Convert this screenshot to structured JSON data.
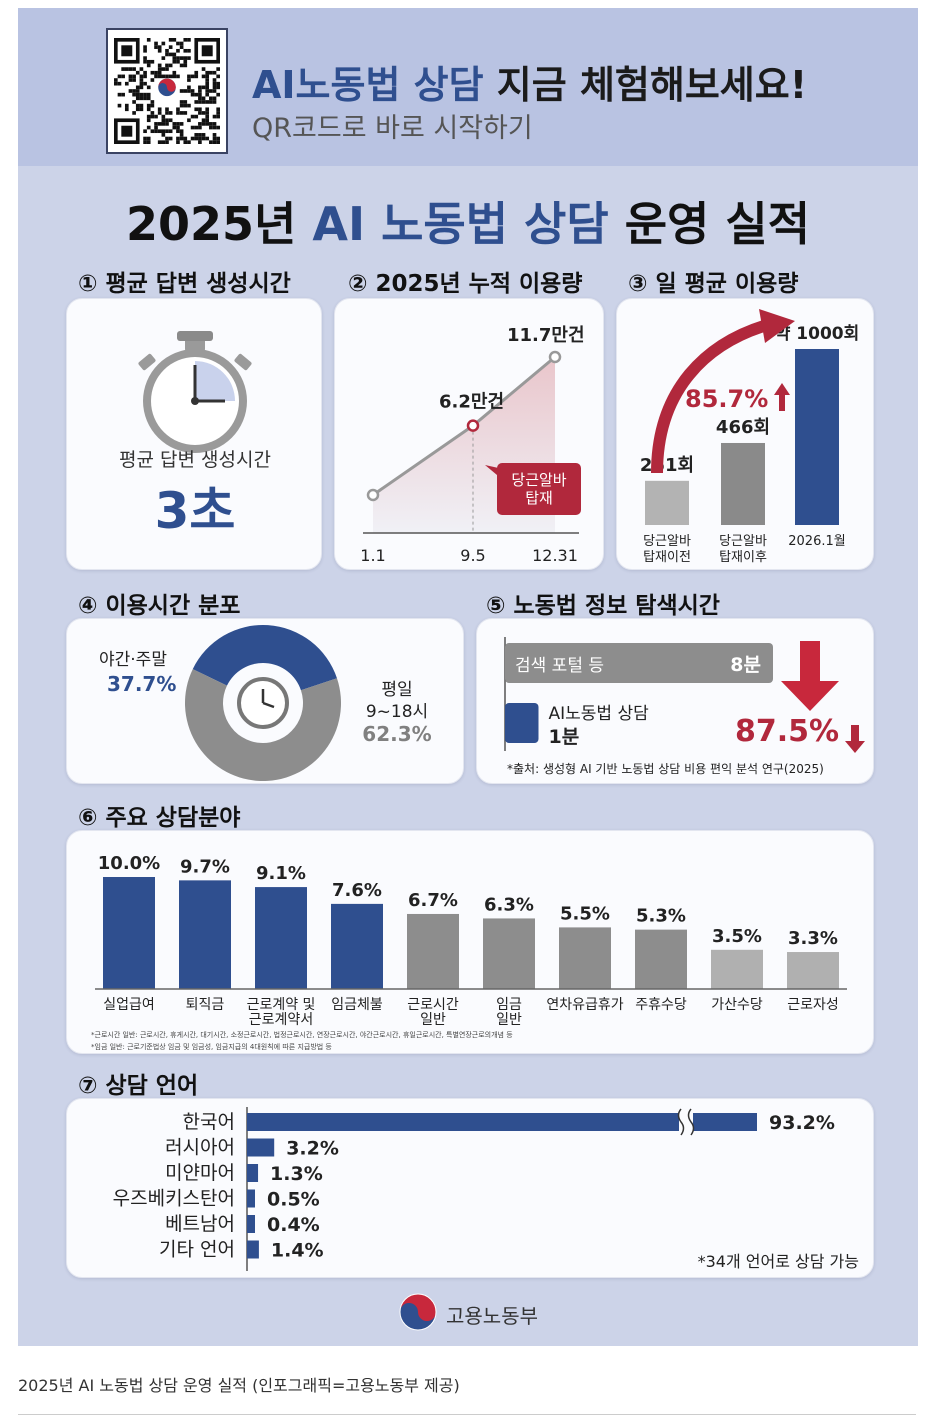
{
  "header": {
    "cta_title_accent": "AI노동법 상담",
    "cta_title_rest": " 지금 체험해보세요!",
    "cta_sub": "QR코드로 바로 시작하기"
  },
  "title": {
    "prefix": "2025년 ",
    "accent": "AI 노동법 상담",
    "suffix": " 운영 실적"
  },
  "sections": {
    "s1": "① 평균 답변 생성시간",
    "s2": "② 2025년 누적 이용량",
    "s3": "③ 일 평균 이용량",
    "s4": "④ 이용시간 분포",
    "s5": "⑤ 노동법 정보 탐색시간",
    "s6": "⑥ 주요 상담분야",
    "s7": "⑦ 상담 언어"
  },
  "avg_time": {
    "label": "평균 답변 생성시간",
    "value": "3초"
  },
  "colors": {
    "navy": "#2f4f8f",
    "grey": "#8a8a8a",
    "light_grey": "#b3b3b3",
    "red": "#b1283c"
  },
  "chart_data": [
    {
      "type": "line",
      "x": [
        "1.1",
        "9.5",
        "12.31"
      ],
      "values": [
        0,
        6.2,
        11.7
      ],
      "point_labels": [
        "",
        "6.2만건",
        "11.7만건"
      ],
      "annotation": "당근알바\n탑재"
    },
    {
      "type": "bar",
      "categories": [
        "당근알바\n탑재이전",
        "당근알바\n탑재이후",
        "2026.1월"
      ],
      "values": [
        251,
        466,
        1000
      ],
      "value_labels": [
        "251회",
        "466회",
        "약 1000회"
      ],
      "growth_label": "85.7%"
    },
    {
      "type": "pie",
      "labels": [
        "야간·주말",
        "평일\n9~18시"
      ],
      "values": [
        37.7,
        62.3
      ],
      "value_labels": [
        "37.7%",
        "62.3%"
      ]
    },
    {
      "type": "bar",
      "categories": [
        "검색 포털 등",
        "AI노동법 상담"
      ],
      "values": [
        8,
        1
      ],
      "value_labels": [
        "8분",
        "1분"
      ],
      "reduction_label": "87.5%",
      "source": "*출처: 생성형 AI 기반 노동법 상담 비용 편익 분석 연구(2025)"
    },
    {
      "type": "bar",
      "categories": [
        "실업급여",
        "퇴직금",
        "근로계약 및\n근로계약서",
        "임금체불",
        "근로시간\n일반",
        "임금\n일반",
        "연차유급휴가",
        "주휴수당",
        "가산수당",
        "근로자성"
      ],
      "values": [
        10.0,
        9.7,
        9.1,
        7.6,
        6.7,
        6.3,
        5.5,
        5.3,
        3.5,
        3.3
      ],
      "value_labels": [
        "10.0%",
        "9.7%",
        "9.1%",
        "7.6%",
        "6.7%",
        "6.3%",
        "5.5%",
        "5.3%",
        "3.5%",
        "3.3%"
      ],
      "footnotes": [
        "*근로시간 일반: 근로시간, 휴게시간, 대기시간, 소정근로시간, 법정근로시간, 연장근로시간, 야간근로시간, 휴일근로시간, 특별연장근로의개념 등",
        "*임금 일반: 근로기준법상 임금 및 임금성, 임금지급의 4대원칙에 따른 지급방법 등"
      ]
    },
    {
      "type": "bar",
      "categories": [
        "한국어",
        "러시아어",
        "미얀마어",
        "우즈베키스탄어",
        "베트남어",
        "기타 언어"
      ],
      "values": [
        93.2,
        3.2,
        1.3,
        0.5,
        0.4,
        1.4
      ],
      "value_labels": [
        "93.2%",
        "3.2%",
        "1.3%",
        "0.5%",
        "0.4%",
        "1.4%"
      ],
      "note": "*34개 언어로 상담 가능"
    }
  ],
  "footer": {
    "ministry": "고용노동부"
  },
  "caption": "2025년 AI 노동법 상담 운영 실적 (인포그래픽=고용노동부 제공)"
}
